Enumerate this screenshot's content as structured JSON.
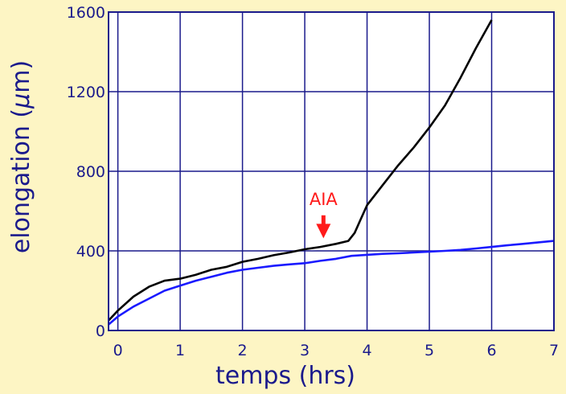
{
  "chart_data": {
    "type": "line",
    "xlabel": "temps (hrs)",
    "ylabel_parts": [
      "elongation (",
      "μ",
      "m)"
    ],
    "xlim": [
      -0.15,
      7
    ],
    "ylim": [
      0,
      1600
    ],
    "x_ticks": [
      0,
      1,
      2,
      3,
      4,
      5,
      6,
      7
    ],
    "y_ticks": [
      0,
      400,
      800,
      1200,
      1600
    ],
    "grid": true,
    "series": [
      {
        "color": "#000000",
        "points": [
          [
            -0.15,
            50
          ],
          [
            0,
            100
          ],
          [
            0.25,
            170
          ],
          [
            0.5,
            220
          ],
          [
            0.75,
            250
          ],
          [
            1,
            260
          ],
          [
            1.25,
            280
          ],
          [
            1.5,
            305
          ],
          [
            1.75,
            320
          ],
          [
            2,
            345
          ],
          [
            2.25,
            360
          ],
          [
            2.5,
            378
          ],
          [
            2.75,
            392
          ],
          [
            3,
            408
          ],
          [
            3.25,
            420
          ],
          [
            3.5,
            435
          ],
          [
            3.7,
            450
          ],
          [
            3.8,
            490
          ],
          [
            3.9,
            560
          ],
          [
            4,
            630
          ],
          [
            4.25,
            730
          ],
          [
            4.5,
            830
          ],
          [
            4.75,
            920
          ],
          [
            5,
            1020
          ],
          [
            5.25,
            1130
          ],
          [
            5.5,
            1270
          ],
          [
            5.75,
            1420
          ],
          [
            6,
            1560
          ]
        ]
      },
      {
        "color": "#1a1aff",
        "points": [
          [
            -0.15,
            30
          ],
          [
            0,
            70
          ],
          [
            0.25,
            120
          ],
          [
            0.5,
            160
          ],
          [
            0.75,
            200
          ],
          [
            1,
            225
          ],
          [
            1.25,
            250
          ],
          [
            1.5,
            270
          ],
          [
            1.75,
            290
          ],
          [
            2,
            305
          ],
          [
            2.25,
            315
          ],
          [
            2.5,
            325
          ],
          [
            2.75,
            332
          ],
          [
            3,
            338
          ],
          [
            3.25,
            350
          ],
          [
            3.5,
            360
          ],
          [
            3.75,
            375
          ],
          [
            4,
            380
          ],
          [
            4.25,
            385
          ],
          [
            4.5,
            388
          ],
          [
            4.75,
            392
          ],
          [
            5,
            396
          ],
          [
            5.25,
            400
          ],
          [
            5.5,
            405
          ],
          [
            5.75,
            412
          ],
          [
            6,
            420
          ],
          [
            6.25,
            428
          ],
          [
            6.5,
            435
          ],
          [
            6.75,
            443
          ],
          [
            7,
            450
          ]
        ]
      }
    ],
    "annotation": {
      "text": "AIA",
      "x": 3.3,
      "y_text": 700,
      "arrow_from": 700,
      "arrow_to": 455,
      "color": "#ff1a1a"
    }
  }
}
